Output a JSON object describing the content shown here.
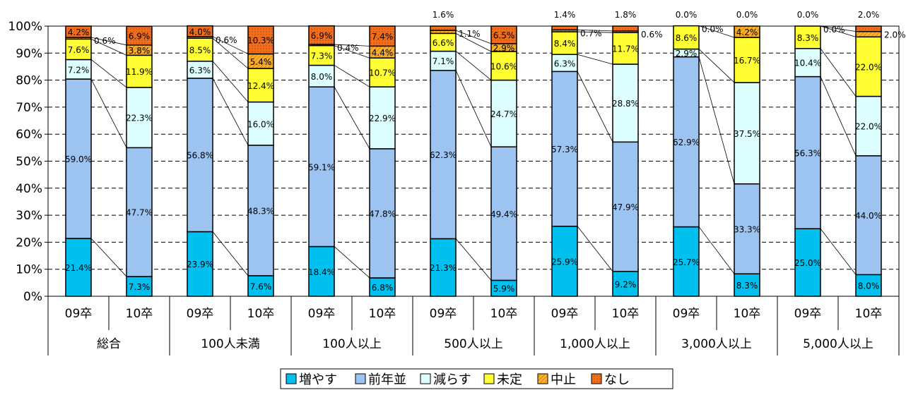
{
  "chart_data": {
    "type": "bar",
    "stacked": true,
    "percent": true,
    "grid": true,
    "legend_position": "bottom",
    "ylim": [
      0,
      100
    ],
    "y_ticks": [
      "0%",
      "10%",
      "20%",
      "30%",
      "40%",
      "50%",
      "60%",
      "70%",
      "80%",
      "90%",
      "100%"
    ],
    "groups": [
      "総合",
      "100人未満",
      "100人以上",
      "500人以上",
      "1,000人以上",
      "3,000人以上",
      "5,000人以上"
    ],
    "sub_categories": [
      "09卒",
      "10卒"
    ],
    "categories": [
      "総合 09卒",
      "総合 10卒",
      "100人未満 09卒",
      "100人未満 10卒",
      "100人以上 09卒",
      "100人以上 10卒",
      "500人以上 09卒",
      "500人以上 10卒",
      "1,000人以上 09卒",
      "1,000人以上 10卒",
      "3,000人以上 09卒",
      "3,000人以上 10卒",
      "5,000人以上 09卒",
      "5,000人以上 10卒"
    ],
    "series": [
      {
        "name": "増やす",
        "color": "#00C0F0",
        "values": [
          21.4,
          7.3,
          23.9,
          7.6,
          18.4,
          6.8,
          21.3,
          5.9,
          25.9,
          9.2,
          25.7,
          8.3,
          25.0,
          8.0
        ]
      },
      {
        "name": "前年並",
        "color": "#9DC3F0",
        "values": [
          59.0,
          47.7,
          56.8,
          48.3,
          59.1,
          47.8,
          62.3,
          49.4,
          57.3,
          47.9,
          62.9,
          33.3,
          56.3,
          44.0
        ]
      },
      {
        "name": "減らす",
        "color": "#DDFFFF",
        "values": [
          7.2,
          22.3,
          6.3,
          16.0,
          8.0,
          22.9,
          7.1,
          24.7,
          6.3,
          28.8,
          2.9,
          37.5,
          10.4,
          22.0
        ]
      },
      {
        "name": "未定",
        "color": "#FFFF33",
        "values": [
          7.6,
          11.9,
          8.5,
          12.4,
          7.3,
          10.7,
          6.6,
          10.6,
          8.4,
          11.7,
          8.6,
          16.7,
          8.3,
          22.0
        ]
      },
      {
        "name": "中止",
        "color": "#FFB030",
        "values": [
          0.6,
          3.8,
          0.6,
          5.4,
          0.4,
          4.4,
          1.1,
          2.9,
          0.7,
          0.6,
          0.0,
          4.2,
          0.0,
          2.0
        ]
      },
      {
        "name": "なし",
        "color": "#F07020",
        "values": [
          4.2,
          6.9,
          4.0,
          10.3,
          6.9,
          7.4,
          1.6,
          6.5,
          1.4,
          1.8,
          0.0,
          0.0,
          0.0,
          2.0
        ]
      }
    ],
    "data_labels": [
      [
        "21.4%",
        "7.3%",
        "23.9%",
        "7.6%",
        "18.4%",
        "6.8%",
        "21.3%",
        "5.9%",
        "25.9%",
        "9.2%",
        "25.7%",
        "8.3%",
        "25.0%",
        "8.0%"
      ],
      [
        "59.0%",
        "47.7%",
        "56.8%",
        "48.3%",
        "59.1%",
        "47.8%",
        "62.3%",
        "49.4%",
        "57.3%",
        "47.9%",
        "62.9%",
        "33.3%",
        "56.3%",
        "44.0%"
      ],
      [
        "7.2%",
        "22.3%",
        "6.3%",
        "16.0%",
        "8.0%",
        "22.9%",
        "7.1%",
        "24.7%",
        "6.3%",
        "28.8%",
        "2.9%",
        "37.5%",
        "10.4%",
        "22.0%"
      ],
      [
        "7.6%",
        "11.9%",
        "8.5%",
        "12.4%",
        "7.3%",
        "10.7%",
        "6.6%",
        "10.6%",
        "8.4%",
        "11.7%",
        "8.6%",
        "16.7%",
        "8.3%",
        "22.0%"
      ],
      [
        "0.6%",
        "3.8%",
        "0.6%",
        "5.4%",
        "0.4%",
        "4.4%",
        "1.1%",
        "2.9%",
        "0.7%",
        "0.6%",
        "0.0%",
        "4.2%",
        "0.0%",
        "2.0%"
      ],
      [
        "4.2%",
        "6.9%",
        "4.0%",
        "10.3%",
        "6.9%",
        "7.4%",
        "1.6%",
        "6.5%",
        "1.4%",
        "1.8%",
        "0.0%",
        "0.0%",
        "0.0%",
        "2.0%"
      ]
    ],
    "title": "",
    "xlabel": "",
    "ylabel": ""
  }
}
